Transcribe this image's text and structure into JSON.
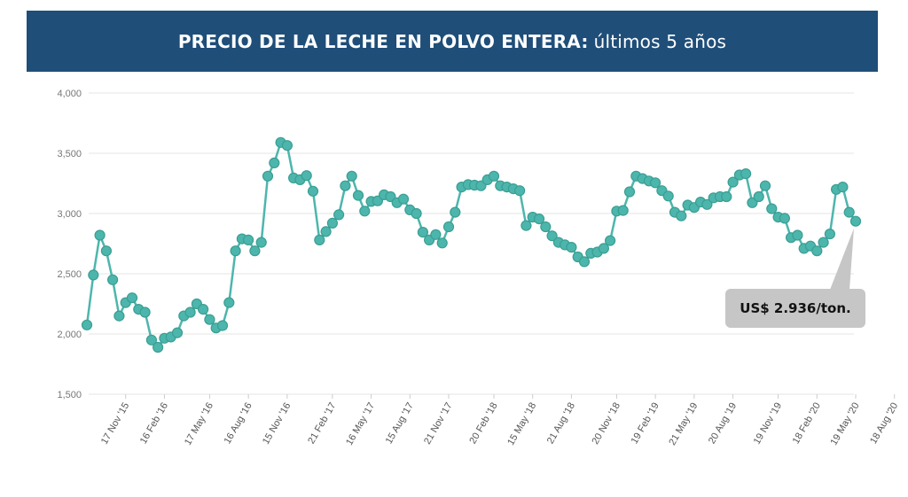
{
  "header": {
    "title_bold": "PRECIO DE LA LECHE EN POLVO ENTERA:",
    "title_light": "últimos 5 años",
    "background": "#1f4e79"
  },
  "chart_data": {
    "type": "line",
    "title": "PRECIO DE LA LECHE EN POLVO ENTERA: últimos 5 años",
    "xlabel": "",
    "ylabel": "",
    "ylim": [
      1500,
      4000
    ],
    "yticks": [
      1500,
      2000,
      2500,
      3000,
      3500,
      4000
    ],
    "ytick_labels": [
      "1,500",
      "2,000",
      "2,500",
      "3,000",
      "3,500",
      "4,000"
    ],
    "grid": true,
    "line_color": "#4db6ac",
    "marker_fill": "#4db6ac",
    "marker_stroke": "#3a9e94",
    "xtick_labels": [
      "17 Nov '15",
      "16 Feb '16",
      "17 May '16",
      "16 Aug '16",
      "15 Nov '16",
      "21 Feb '17",
      "16 May '17",
      "15 Aug '17",
      "21 Nov '17",
      "20 Feb '18",
      "15 May '18",
      "21 Aug '18",
      "20 Nov '18",
      "19 Feb '19",
      "21 May '19",
      "20 Aug '19",
      "19 Nov '19",
      "18 Feb '20",
      "19 May '20",
      "18 Aug '20"
    ],
    "xtick_index": [
      6,
      12,
      19,
      25,
      31,
      38,
      44,
      50,
      56,
      63,
      69,
      75,
      82,
      88,
      94,
      100,
      107,
      113,
      119,
      125
    ],
    "series": [
      {
        "name": "",
        "values": [
          2075,
          2490,
          2820,
          2690,
          2450,
          2150,
          2260,
          2300,
          2205,
          2180,
          1950,
          1890,
          1965,
          1975,
          2010,
          2150,
          2180,
          2250,
          2205,
          2120,
          2050,
          2070,
          2260,
          2690,
          2790,
          2780,
          2690,
          2760,
          3310,
          3420,
          3590,
          3565,
          3295,
          3280,
          3315,
          3185,
          2780,
          2850,
          2920,
          2990,
          3230,
          3310,
          3150,
          3020,
          3100,
          3105,
          3155,
          3140,
          3090,
          3120,
          3030,
          3000,
          2845,
          2780,
          2825,
          2755,
          2890,
          3010,
          3220,
          3240,
          3235,
          3230,
          3280,
          3310,
          3230,
          3220,
          3205,
          3190,
          2900,
          2970,
          2955,
          2890,
          2815,
          2760,
          2740,
          2720,
          2640,
          2600,
          2670,
          2680,
          2710,
          2775,
          3020,
          3025,
          3180,
          3310,
          3290,
          3270,
          3255,
          3190,
          3145,
          3010,
          2980,
          3070,
          3050,
          3095,
          3075,
          3130,
          3140,
          3140,
          3260,
          3320,
          3330,
          3090,
          3140,
          3230,
          3040,
          2970,
          2960,
          2800,
          2820,
          2710,
          2730,
          2690,
          2760,
          2830,
          3200,
          3220,
          3010,
          2936
        ]
      }
    ],
    "annotation": {
      "text": "US$ 2.936/ton.",
      "value": 2936
    }
  }
}
